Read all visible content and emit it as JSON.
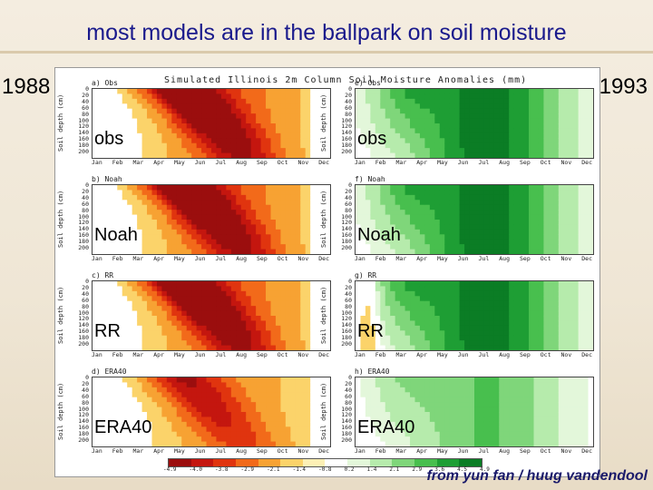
{
  "slide": {
    "title": "most models are in the ballpark on soil moisture",
    "year_left": "1988",
    "year_right": "1993",
    "credit": "from yun fan / huug vandendool"
  },
  "figure": {
    "title": "Simulated Illinois 2m Column Soil Moisture Anomalies (mm)",
    "ylabel": "Soil depth (cm)",
    "depth_ticks": [
      "0",
      "20",
      "40",
      "60",
      "80",
      "100",
      "120",
      "140",
      "160",
      "180",
      "200"
    ],
    "months": [
      "Jan",
      "Feb",
      "Mar",
      "Apr",
      "May",
      "Jun",
      "Jul",
      "Aug",
      "Sep",
      "Oct",
      "Nov",
      "Dec"
    ],
    "colorbar_labels": [
      "-4.9",
      "-4.0",
      "-3.8",
      "-2.9",
      "-2.1",
      "-1.4",
      "-0.8",
      "0.2",
      "1.4",
      "2.1",
      "2.9",
      "3.6",
      "4.5",
      "4.9"
    ],
    "rows": [
      {
        "left_tag": "a) Obs",
        "right_tag": "e) Obs",
        "label": "obs"
      },
      {
        "left_tag": "b) Noah",
        "right_tag": "f) Noah",
        "label": "Noah"
      },
      {
        "left_tag": "c) RR",
        "right_tag": "g) RR",
        "label": "RR"
      },
      {
        "left_tag": "d) ERA40",
        "right_tag": "h) ERA40",
        "label": "ERA40"
      }
    ]
  },
  "colors": {
    "warm": [
      "#9b0e0e",
      "#c4160f",
      "#e0340f",
      "#f26a1a",
      "#f7a233",
      "#fbd36a",
      "#fdf0b5"
    ],
    "cool": [
      "#e3f7da",
      "#b6ebac",
      "#7fd67a",
      "#48bf4e",
      "#1e9e34",
      "#0b7d25"
    ],
    "title_blue": "#1a1a8c"
  }
}
